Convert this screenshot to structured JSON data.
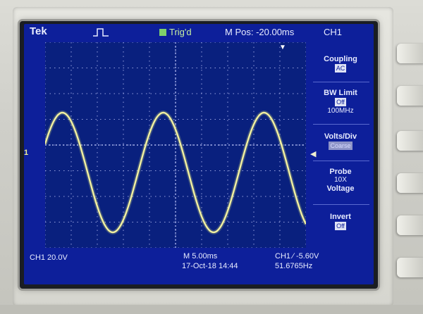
{
  "scope": {
    "brand": "Tek",
    "trigger_status": "Trig'd",
    "m_pos": "M Pos: -20.00ms",
    "channel_header": "CH1",
    "ch_marker": "1",
    "menu": [
      {
        "title": "Coupling",
        "value": "AC",
        "dim": false
      },
      {
        "title": "BW Limit",
        "value": "Off",
        "sub": "100MHz",
        "dim": false
      },
      {
        "title": "Volts/Div",
        "value": "Coarse",
        "dim": true
      },
      {
        "title": "Probe",
        "sub": "10X",
        "sub2": "Voltage"
      },
      {
        "title": "Invert",
        "value": "Off",
        "dim": false
      }
    ],
    "bottom": {
      "ch_scale": "CH1  20.0V",
      "timebase": "M 5.00ms",
      "date": "17-Oct-18 14:44",
      "trigger": "CH1 ∕ -5.60V",
      "freq": "51.6765Hz"
    }
  },
  "colors": {
    "screen": "#0d1f9a",
    "trace": "#f2f0a0",
    "grid": "#c6ccff"
  },
  "icons": [
    "pulse-icon",
    "trigger-arrow-icon"
  ]
}
